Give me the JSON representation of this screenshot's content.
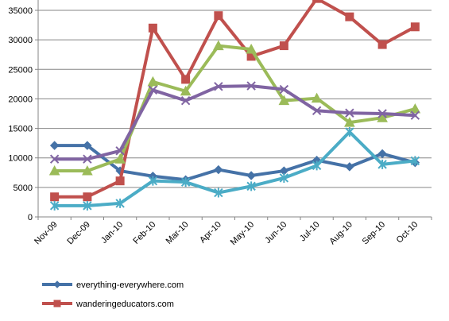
{
  "chart_data": {
    "type": "line",
    "title": "",
    "xlabel": "",
    "ylabel": "",
    "categories": [
      "Nov-09",
      "Dec-09",
      "Jan-10",
      "Feb-10",
      "Mar-10",
      "Apr-10",
      "May-10",
      "Jun-10",
      "Jul-10",
      "Aug-10",
      "Sep-10",
      "Oct-10"
    ],
    "ylim": [
      0,
      35000
    ],
    "yticks": [
      "0",
      "5000",
      "10000",
      "15000",
      "20000",
      "25000",
      "30000",
      "35000"
    ],
    "grid": "horizontal",
    "legend_position": "bottom-left",
    "series": [
      {
        "name": "everything-everywhere.com",
        "color": "#4572A7",
        "marker": "diamond",
        "values": [
          12100,
          12100,
          7800,
          6900,
          6300,
          8000,
          7000,
          7800,
          9600,
          8500,
          10700,
          9200
        ]
      },
      {
        "name": "wanderingeducators.com",
        "color": "#C0504D",
        "marker": "square",
        "values": [
          3400,
          3400,
          6100,
          32000,
          23300,
          34100,
          27200,
          29000,
          37000,
          33900,
          29200,
          32200
        ]
      },
      {
        "color": "#9BBB59",
        "marker": "triangle",
        "values": [
          7800,
          7800,
          9800,
          22900,
          21300,
          29000,
          28400,
          19700,
          20100,
          16000,
          16800,
          18300
        ]
      },
      {
        "color": "#8064A2",
        "marker": "x",
        "values": [
          9800,
          9800,
          11200,
          21500,
          19700,
          22100,
          22200,
          21600,
          18000,
          17600,
          17500,
          17200
        ]
      },
      {
        "color": "#4BACC6",
        "marker": "star",
        "values": [
          1900,
          1900,
          2300,
          6100,
          5900,
          4100,
          5200,
          6600,
          8700,
          14400,
          8900,
          9500
        ]
      }
    ]
  }
}
